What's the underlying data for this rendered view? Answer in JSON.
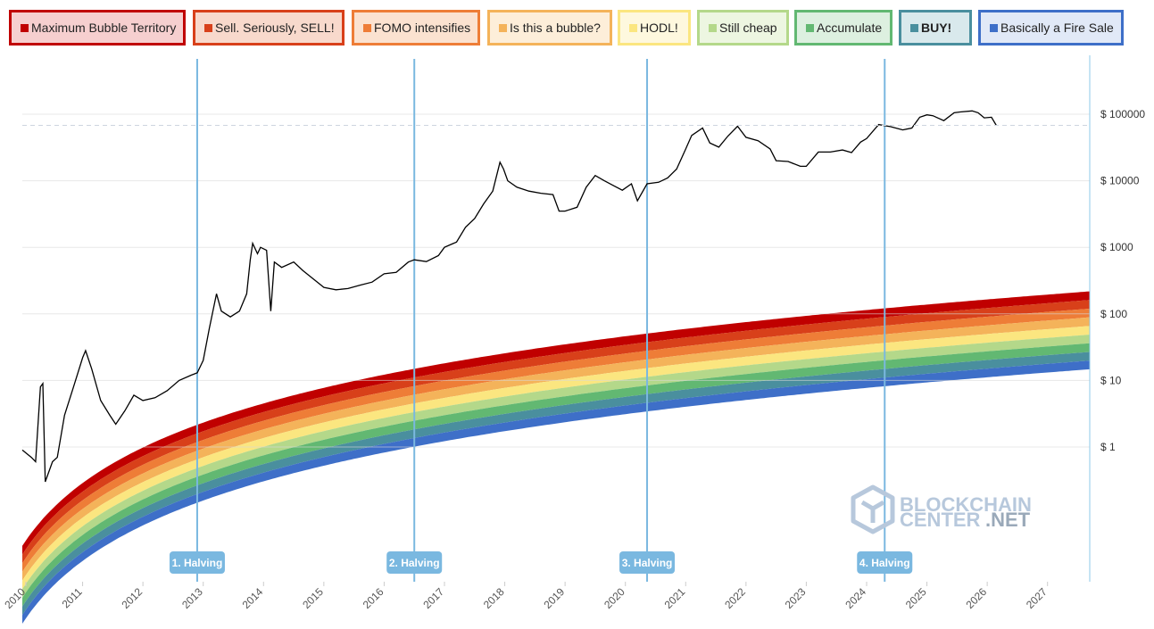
{
  "legend": [
    {
      "label": "Maximum Bubble Territory",
      "color": "#c00000",
      "bg": "#f6cfcf",
      "bold": false
    },
    {
      "label": "Sell. Seriously, SELL!",
      "color": "#d8401a",
      "bg": "#f8d9cc",
      "bold": false
    },
    {
      "label": "FOMO intensifies",
      "color": "#ee7d37",
      "bg": "#fbe2d0",
      "bold": false
    },
    {
      "label": "Is this a bubble?",
      "color": "#f4b35a",
      "bg": "#fdeed9",
      "bold": false
    },
    {
      "label": "HODL!",
      "color": "#fbe680",
      "bg": "#fef8de",
      "bold": false
    },
    {
      "label": "Still cheap",
      "color": "#b4d88a",
      "bg": "#edf6e1",
      "bold": false
    },
    {
      "label": "Accumulate",
      "color": "#62b872",
      "bg": "#ddf0e0",
      "bold": false
    },
    {
      "label": "BUY!",
      "color": "#4a8f9e",
      "bg": "#d9e9ec",
      "bold": true
    },
    {
      "label": "Basically a Fire Sale",
      "color": "#3e6fc8",
      "bg": "#e1e9f7",
      "bold": false
    }
  ],
  "chart_data": {
    "type": "line",
    "yscale": "log",
    "ylim": [
      0.05,
      1000000
    ],
    "xlim": [
      2010.0,
      2027.7
    ],
    "y_ticks": [
      1,
      10,
      100,
      1000,
      10000,
      100000
    ],
    "y_tick_labels": [
      "$ 1",
      "$ 10",
      "$ 100",
      "$ 1000",
      "$ 10000",
      "$ 100000"
    ],
    "x_ticks": [
      2010,
      2011,
      2012,
      2013,
      2014,
      2015,
      2016,
      2017,
      2018,
      2019,
      2020,
      2021,
      2022,
      2023,
      2024,
      2025,
      2026,
      2027
    ],
    "x_tick_labels": [
      "2010",
      "2011",
      "2012",
      "2013",
      "2014",
      "2015",
      "2016",
      "2017",
      "2018",
      "2019",
      "2020",
      "2021",
      "2022",
      "2023",
      "2024",
      "2025",
      "2026",
      "2027"
    ],
    "band_colors": [
      "#c00000",
      "#d8401a",
      "#ee7d37",
      "#f4b35a",
      "#fbe680",
      "#b4d88a",
      "#62b872",
      "#4a8f9e",
      "#3e6fc8"
    ],
    "halvings": [
      {
        "x": 2012.9,
        "label": "1. Halving"
      },
      {
        "x": 2016.5,
        "label": "2. Halving"
      },
      {
        "x": 2020.36,
        "label": "3. Halving"
      },
      {
        "x": 2024.3,
        "label": "4. Halving"
      }
    ],
    "price_series": {
      "name": "BTC price",
      "points": [
        [
          2010.0,
          0.9
        ],
        [
          2010.15,
          0.7
        ],
        [
          2010.22,
          0.6
        ],
        [
          2010.3,
          8
        ],
        [
          2010.34,
          9
        ],
        [
          2010.38,
          0.3
        ],
        [
          2010.5,
          0.6
        ],
        [
          2010.58,
          0.7
        ],
        [
          2010.7,
          3
        ],
        [
          2010.85,
          8
        ],
        [
          2011.0,
          22
        ],
        [
          2011.05,
          28
        ],
        [
          2011.15,
          15
        ],
        [
          2011.3,
          5
        ],
        [
          2011.45,
          3
        ],
        [
          2011.55,
          2.2
        ],
        [
          2011.7,
          3.5
        ],
        [
          2011.85,
          6
        ],
        [
          2012.0,
          5
        ],
        [
          2012.2,
          5.5
        ],
        [
          2012.4,
          7
        ],
        [
          2012.6,
          10
        ],
        [
          2012.8,
          12
        ],
        [
          2012.9,
          13
        ],
        [
          2013.0,
          20
        ],
        [
          2013.1,
          60
        ],
        [
          2013.22,
          200
        ],
        [
          2013.3,
          110
        ],
        [
          2013.45,
          90
        ],
        [
          2013.6,
          110
        ],
        [
          2013.72,
          200
        ],
        [
          2013.78,
          650
        ],
        [
          2013.82,
          1150
        ],
        [
          2013.9,
          800
        ],
        [
          2013.95,
          1000
        ],
        [
          2014.05,
          900
        ],
        [
          2014.12,
          110
        ],
        [
          2014.18,
          600
        ],
        [
          2014.3,
          500
        ],
        [
          2014.5,
          600
        ],
        [
          2014.65,
          450
        ],
        [
          2014.8,
          350
        ],
        [
          2015.0,
          250
        ],
        [
          2015.2,
          230
        ],
        [
          2015.4,
          240
        ],
        [
          2015.6,
          270
        ],
        [
          2015.8,
          300
        ],
        [
          2016.0,
          400
        ],
        [
          2016.2,
          420
        ],
        [
          2016.4,
          600
        ],
        [
          2016.5,
          650
        ],
        [
          2016.7,
          610
        ],
        [
          2016.9,
          750
        ],
        [
          2017.0,
          1000
        ],
        [
          2017.2,
          1200
        ],
        [
          2017.35,
          2000
        ],
        [
          2017.5,
          2700
        ],
        [
          2017.65,
          4500
        ],
        [
          2017.8,
          7000
        ],
        [
          2017.92,
          19000
        ],
        [
          2017.98,
          15000
        ],
        [
          2018.05,
          10000
        ],
        [
          2018.2,
          8000
        ],
        [
          2018.4,
          7000
        ],
        [
          2018.6,
          6500
        ],
        [
          2018.8,
          6200
        ],
        [
          2018.9,
          3500
        ],
        [
          2019.0,
          3500
        ],
        [
          2019.2,
          4000
        ],
        [
          2019.35,
          8000
        ],
        [
          2019.5,
          12000
        ],
        [
          2019.65,
          10000
        ],
        [
          2019.8,
          8500
        ],
        [
          2019.95,
          7200
        ],
        [
          2020.1,
          9000
        ],
        [
          2020.2,
          5000
        ],
        [
          2020.36,
          9000
        ],
        [
          2020.55,
          9500
        ],
        [
          2020.7,
          11000
        ],
        [
          2020.85,
          15000
        ],
        [
          2021.0,
          30000
        ],
        [
          2021.1,
          48000
        ],
        [
          2021.28,
          62000
        ],
        [
          2021.4,
          37000
        ],
        [
          2021.55,
          32000
        ],
        [
          2021.7,
          47000
        ],
        [
          2021.86,
          66000
        ],
        [
          2022.0,
          45000
        ],
        [
          2022.2,
          40000
        ],
        [
          2022.4,
          30000
        ],
        [
          2022.5,
          20000
        ],
        [
          2022.7,
          19500
        ],
        [
          2022.9,
          16500
        ],
        [
          2023.0,
          16500
        ],
        [
          2023.2,
          27000
        ],
        [
          2023.4,
          27000
        ],
        [
          2023.6,
          29000
        ],
        [
          2023.75,
          26500
        ],
        [
          2023.9,
          38000
        ],
        [
          2024.0,
          43000
        ],
        [
          2024.2,
          70000
        ],
        [
          2024.4,
          65000
        ],
        [
          2024.6,
          58000
        ],
        [
          2024.75,
          62000
        ],
        [
          2024.88,
          90000
        ],
        [
          2025.0,
          98000
        ],
        [
          2025.1,
          95000
        ],
        [
          2025.28,
          80000
        ],
        [
          2025.45,
          105000
        ],
        [
          2025.55,
          108000
        ],
        [
          2025.75,
          112000
        ],
        [
          2025.85,
          105000
        ],
        [
          2025.95,
          88000
        ],
        [
          2026.07,
          90000
        ],
        [
          2026.15,
          68000
        ]
      ]
    }
  },
  "watermark": {
    "line1": "BLOCKCHAIN",
    "line2": "CENTER",
    "line3": ".NET"
  }
}
